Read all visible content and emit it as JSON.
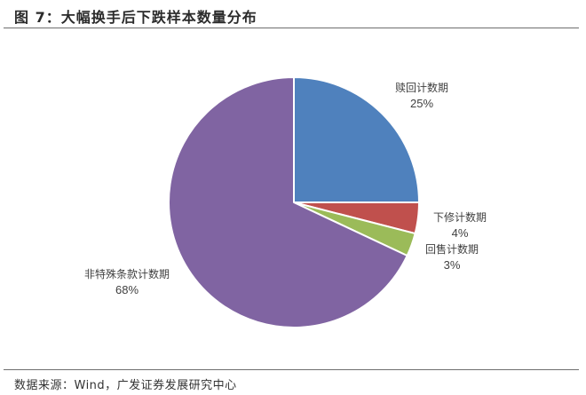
{
  "header": {
    "title": "图 7：大幅换手后下跌样本数量分布"
  },
  "footer": {
    "source": "数据来源：Wind，广发证券发展研究中心"
  },
  "chart_data": {
    "type": "pie",
    "title": "大幅换手后下跌样本数量分布",
    "start_angle_deg": 90,
    "direction": "clockwise",
    "slices": [
      {
        "label": "赎回计数期",
        "value": 25,
        "pct_label": "25%",
        "color": "#4F81BD"
      },
      {
        "label": "下修计数期",
        "value": 4,
        "pct_label": "4%",
        "color": "#C0504D"
      },
      {
        "label": "回售计数期",
        "value": 3,
        "pct_label": "3%",
        "color": "#9BBB59"
      },
      {
        "label": "非特殊条款计数期",
        "value": 68,
        "pct_label": "68%",
        "color": "#8064A2"
      }
    ],
    "legend": "none (data labels outside slices)"
  }
}
